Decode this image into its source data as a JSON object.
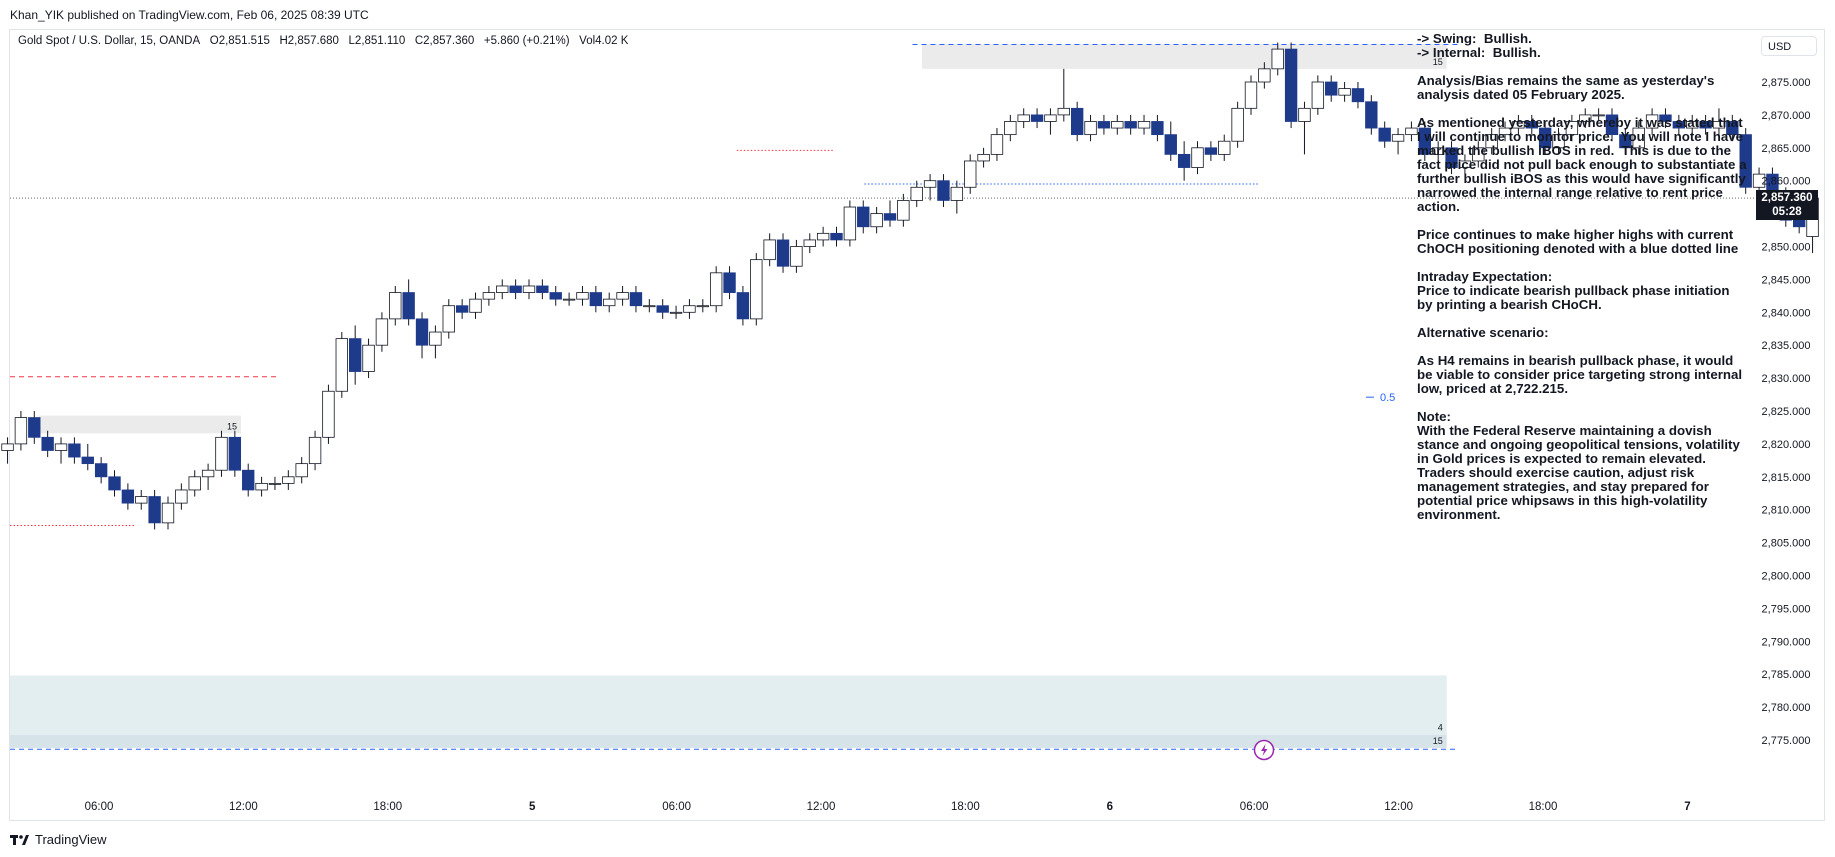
{
  "publisher": "Khan_YIK published on TradingView.com, Feb 06, 2025 08:39 UTC",
  "footer_brand": "TradingView",
  "footer_logo_icon": "tradingview-logo-icon",
  "legend": {
    "symbol": "Gold Spot / U.S. Dollar, 15, OANDA",
    "open": "O2,851.515",
    "high": "H2,857.680",
    "low": "L2,851.110",
    "close": "C2,857.360",
    "change": "+5.860 (+0.21%)",
    "volume": "Vol4.02 K"
  },
  "currency_button": "USD",
  "current_price": "2,857.360",
  "countdown": "05:28",
  "fib_label": "0.5",
  "zone_labels": {
    "top": "15",
    "left": "15",
    "lower_a": "4",
    "lower_b": "15"
  },
  "alert_icon": "lightning-icon",
  "colors": {
    "bear": "#1e3a8a",
    "bull_body": "#ffffff",
    "wick": "#131722",
    "dash_blue": "#2962ff",
    "dash_red": "#f23645",
    "zone_grey": "#e8e8e8",
    "zone_cyan": "#e3eff0"
  },
  "notes": [
    "-> Swing:  Bullish.\n-> Internal:  Bullish.",
    "Analysis/Bias remains the same as yesterday's analysis dated 05 February 2025.",
    "As mentioned yesterday, whereby it was stated that I will continue to monitor price.  You will note I have marked the bullish iBOS in red.  This is due to the fact price did not pull back enough to substantiate a further bullish iBOS as this would have significantly narrowed the internal range relative to rent price action.",
    "Price continues to make higher highs with current ChOCH positioning denoted with a blue dotted line",
    "Intraday Expectation:\nPrice to indicate bearish pullback phase initiation by printing a bearish CHoCH.",
    "Alternative scenario:",
    "As H4 remains in bearish pullback phase, it would be viable to consider price targeting strong internal low, priced at 2,722.215.",
    "Note:\nWith the Federal Reserve maintaining a dovish stance and ongoing geopolitical tensions, volatility in Gold prices is expected to remain elevated. Traders should exercise caution, adjust risk management strategies, and stay prepared for potential price whipsaws in this high-volatility environment."
  ],
  "chart_data": {
    "type": "candlestick",
    "ylim": [
      2770,
      2882
    ],
    "y_ticks": [
      "2,875.000",
      "2,870.000",
      "2,865.000",
      "2,860.000",
      "2,855.000",
      "2,850.000",
      "2,845.000",
      "2,840.000",
      "2,835.000",
      "2,830.000",
      "2,825.000",
      "2,820.000",
      "2,815.000",
      "2,810.000",
      "2,805.000",
      "2,800.000",
      "2,795.000",
      "2,790.000",
      "2,785.000",
      "2,780.000",
      "2,775.000"
    ],
    "y_tick_values": [
      2875,
      2870,
      2865,
      2860,
      2855,
      2850,
      2845,
      2840,
      2835,
      2830,
      2825,
      2820,
      2815,
      2810,
      2805,
      2800,
      2795,
      2790,
      2785,
      2780,
      2775
    ],
    "x_ticks": [
      "06:00",
      "12:00",
      "18:00",
      "5",
      "06:00",
      "12:00",
      "18:00",
      "6",
      "06:00",
      "12:00",
      "18:00",
      "7"
    ],
    "x_tick_hours": [
      6,
      12,
      18,
      24,
      30,
      36,
      42,
      48,
      54,
      60,
      66,
      72
    ],
    "x_range_hours": [
      2.2,
      77.7
    ],
    "candles": [
      {
        "o": 2819,
        "h": 2821,
        "l": 2817,
        "c": 2820
      },
      {
        "o": 2820,
        "h": 2825,
        "l": 2819,
        "c": 2824
      },
      {
        "o": 2824,
        "h": 2825,
        "l": 2820,
        "c": 2821
      },
      {
        "o": 2821,
        "h": 2822,
        "l": 2818,
        "c": 2819
      },
      {
        "o": 2819,
        "h": 2821,
        "l": 2817,
        "c": 2820
      },
      {
        "o": 2820,
        "h": 2821,
        "l": 2817,
        "c": 2818
      },
      {
        "o": 2818,
        "h": 2820,
        "l": 2816,
        "c": 2817
      },
      {
        "o": 2817,
        "h": 2818,
        "l": 2814,
        "c": 2815
      },
      {
        "o": 2815,
        "h": 2816,
        "l": 2812,
        "c": 2813
      },
      {
        "o": 2813,
        "h": 2814,
        "l": 2810,
        "c": 2811
      },
      {
        "o": 2811,
        "h": 2813,
        "l": 2810,
        "c": 2812
      },
      {
        "o": 2812,
        "h": 2813,
        "l": 2807,
        "c": 2808
      },
      {
        "o": 2808,
        "h": 2812,
        "l": 2807,
        "c": 2811
      },
      {
        "o": 2811,
        "h": 2814,
        "l": 2810,
        "c": 2813
      },
      {
        "o": 2813,
        "h": 2816,
        "l": 2812,
        "c": 2815
      },
      {
        "o": 2815,
        "h": 2817,
        "l": 2813,
        "c": 2816
      },
      {
        "o": 2816,
        "h": 2822,
        "l": 2815,
        "c": 2821
      },
      {
        "o": 2821,
        "h": 2822,
        "l": 2815,
        "c": 2816
      },
      {
        "o": 2816,
        "h": 2817,
        "l": 2812,
        "c": 2813
      },
      {
        "o": 2813,
        "h": 2815,
        "l": 2812,
        "c": 2814
      },
      {
        "o": 2814,
        "h": 2815,
        "l": 2813,
        "c": 2814
      },
      {
        "o": 2814,
        "h": 2816,
        "l": 2813,
        "c": 2815
      },
      {
        "o": 2815,
        "h": 2818,
        "l": 2814,
        "c": 2817
      },
      {
        "o": 2817,
        "h": 2822,
        "l": 2816,
        "c": 2821
      },
      {
        "o": 2821,
        "h": 2829,
        "l": 2820,
        "c": 2828
      },
      {
        "o": 2828,
        "h": 2837,
        "l": 2827,
        "c": 2836
      },
      {
        "o": 2836,
        "h": 2838,
        "l": 2829,
        "c": 2831
      },
      {
        "o": 2831,
        "h": 2836,
        "l": 2830,
        "c": 2835
      },
      {
        "o": 2835,
        "h": 2840,
        "l": 2834,
        "c": 2839
      },
      {
        "o": 2839,
        "h": 2844,
        "l": 2838,
        "c": 2843
      },
      {
        "o": 2843,
        "h": 2845,
        "l": 2838,
        "c": 2839
      },
      {
        "o": 2839,
        "h": 2840,
        "l": 2833,
        "c": 2835
      },
      {
        "o": 2835,
        "h": 2838,
        "l": 2833,
        "c": 2837
      },
      {
        "o": 2837,
        "h": 2842,
        "l": 2836,
        "c": 2841
      },
      {
        "o": 2841,
        "h": 2842,
        "l": 2839,
        "c": 2840
      },
      {
        "o": 2840,
        "h": 2843,
        "l": 2839,
        "c": 2842
      },
      {
        "o": 2842,
        "h": 2844,
        "l": 2841,
        "c": 2843
      },
      {
        "o": 2843,
        "h": 2845,
        "l": 2842,
        "c": 2844
      },
      {
        "o": 2844,
        "h": 2845,
        "l": 2842,
        "c": 2843
      },
      {
        "o": 2843,
        "h": 2845,
        "l": 2842,
        "c": 2844
      },
      {
        "o": 2844,
        "h": 2845,
        "l": 2842,
        "c": 2843
      },
      {
        "o": 2843,
        "h": 2844,
        "l": 2841,
        "c": 2842
      },
      {
        "o": 2842,
        "h": 2843,
        "l": 2841,
        "c": 2842
      },
      {
        "o": 2842,
        "h": 2844,
        "l": 2841,
        "c": 2843
      },
      {
        "o": 2843,
        "h": 2844,
        "l": 2840,
        "c": 2841
      },
      {
        "o": 2841,
        "h": 2843,
        "l": 2840,
        "c": 2842
      },
      {
        "o": 2842,
        "h": 2844,
        "l": 2841,
        "c": 2843
      },
      {
        "o": 2843,
        "h": 2844,
        "l": 2840,
        "c": 2841
      },
      {
        "o": 2841,
        "h": 2842,
        "l": 2840,
        "c": 2841
      },
      {
        "o": 2841,
        "h": 2842,
        "l": 2839,
        "c": 2840
      },
      {
        "o": 2840,
        "h": 2841,
        "l": 2839,
        "c": 2840
      },
      {
        "o": 2840,
        "h": 2842,
        "l": 2839,
        "c": 2841
      },
      {
        "o": 2841,
        "h": 2842,
        "l": 2840,
        "c": 2841
      },
      {
        "o": 2841,
        "h": 2847,
        "l": 2840,
        "c": 2846
      },
      {
        "o": 2846,
        "h": 2847,
        "l": 2842,
        "c": 2843
      },
      {
        "o": 2843,
        "h": 2844,
        "l": 2838,
        "c": 2839
      },
      {
        "o": 2839,
        "h": 2849,
        "l": 2838,
        "c": 2848
      },
      {
        "o": 2848,
        "h": 2852,
        "l": 2847,
        "c": 2851
      },
      {
        "o": 2851,
        "h": 2852,
        "l": 2846,
        "c": 2847
      },
      {
        "o": 2847,
        "h": 2851,
        "l": 2846,
        "c": 2850
      },
      {
        "o": 2850,
        "h": 2852,
        "l": 2849,
        "c": 2851
      },
      {
        "o": 2851,
        "h": 2853,
        "l": 2850,
        "c": 2852
      },
      {
        "o": 2852,
        "h": 2853,
        "l": 2850,
        "c": 2851
      },
      {
        "o": 2851,
        "h": 2857,
        "l": 2850,
        "c": 2856
      },
      {
        "o": 2856,
        "h": 2857,
        "l": 2852,
        "c": 2853
      },
      {
        "o": 2853,
        "h": 2856,
        "l": 2852,
        "c": 2855
      },
      {
        "o": 2855,
        "h": 2857,
        "l": 2853,
        "c": 2854
      },
      {
        "o": 2854,
        "h": 2858,
        "l": 2853,
        "c": 2857
      },
      {
        "o": 2857,
        "h": 2860,
        "l": 2856,
        "c": 2859
      },
      {
        "o": 2859,
        "h": 2861,
        "l": 2857,
        "c": 2860
      },
      {
        "o": 2860,
        "h": 2861,
        "l": 2856,
        "c": 2857
      },
      {
        "o": 2857,
        "h": 2860,
        "l": 2855,
        "c": 2859
      },
      {
        "o": 2859,
        "h": 2864,
        "l": 2858,
        "c": 2863
      },
      {
        "o": 2863,
        "h": 2865,
        "l": 2862,
        "c": 2864
      },
      {
        "o": 2864,
        "h": 2868,
        "l": 2863,
        "c": 2867
      },
      {
        "o": 2867,
        "h": 2870,
        "l": 2866,
        "c": 2869
      },
      {
        "o": 2869,
        "h": 2871,
        "l": 2868,
        "c": 2870
      },
      {
        "o": 2870,
        "h": 2871,
        "l": 2868,
        "c": 2869
      },
      {
        "o": 2869,
        "h": 2871,
        "l": 2867,
        "c": 2870
      },
      {
        "o": 2870,
        "h": 2877,
        "l": 2869,
        "c": 2871
      },
      {
        "o": 2871,
        "h": 2872,
        "l": 2866,
        "c": 2867
      },
      {
        "o": 2867,
        "h": 2870,
        "l": 2866,
        "c": 2869
      },
      {
        "o": 2869,
        "h": 2870,
        "l": 2867,
        "c": 2868
      },
      {
        "o": 2868,
        "h": 2870,
        "l": 2867,
        "c": 2869
      },
      {
        "o": 2869,
        "h": 2870,
        "l": 2867,
        "c": 2868
      },
      {
        "o": 2868,
        "h": 2870,
        "l": 2867,
        "c": 2869
      },
      {
        "o": 2869,
        "h": 2870,
        "l": 2866,
        "c": 2867
      },
      {
        "o": 2867,
        "h": 2869,
        "l": 2863,
        "c": 2864
      },
      {
        "o": 2864,
        "h": 2866,
        "l": 2860,
        "c": 2862
      },
      {
        "o": 2862,
        "h": 2866,
        "l": 2861,
        "c": 2865
      },
      {
        "o": 2865,
        "h": 2866,
        "l": 2863,
        "c": 2864
      },
      {
        "o": 2864,
        "h": 2867,
        "l": 2863,
        "c": 2866
      },
      {
        "o": 2866,
        "h": 2872,
        "l": 2865,
        "c": 2871
      },
      {
        "o": 2871,
        "h": 2876,
        "l": 2870,
        "c": 2875
      },
      {
        "o": 2875,
        "h": 2878,
        "l": 2874,
        "c": 2877
      },
      {
        "o": 2877,
        "h": 2881,
        "l": 2876,
        "c": 2880
      },
      {
        "o": 2880,
        "h": 2881,
        "l": 2868,
        "c": 2869
      },
      {
        "o": 2869,
        "h": 2872,
        "l": 2864,
        "c": 2871
      },
      {
        "o": 2871,
        "h": 2876,
        "l": 2870,
        "c": 2875
      },
      {
        "o": 2875,
        "h": 2876,
        "l": 2872,
        "c": 2873
      },
      {
        "o": 2873,
        "h": 2875,
        "l": 2872,
        "c": 2874
      },
      {
        "o": 2874,
        "h": 2875,
        "l": 2871,
        "c": 2872
      },
      {
        "o": 2872,
        "h": 2873,
        "l": 2867,
        "c": 2868
      },
      {
        "o": 2868,
        "h": 2869,
        "l": 2865,
        "c": 2866
      },
      {
        "o": 2866,
        "h": 2868,
        "l": 2864,
        "c": 2867
      },
      {
        "o": 2867,
        "h": 2869,
        "l": 2866,
        "c": 2868
      },
      {
        "o": 2868,
        "h": 2869,
        "l": 2863,
        "c": 2864
      },
      {
        "o": 2864,
        "h": 2866,
        "l": 2862,
        "c": 2865
      },
      {
        "o": 2865,
        "h": 2866,
        "l": 2861,
        "c": 2862
      },
      {
        "o": 2862,
        "h": 2864,
        "l": 2861,
        "c": 2863
      },
      {
        "o": 2863,
        "h": 2866,
        "l": 2862,
        "c": 2865
      },
      {
        "o": 2865,
        "h": 2868,
        "l": 2864,
        "c": 2867
      },
      {
        "o": 2867,
        "h": 2869,
        "l": 2866,
        "c": 2868
      },
      {
        "o": 2868,
        "h": 2870,
        "l": 2867,
        "c": 2869
      },
      {
        "o": 2869,
        "h": 2870,
        "l": 2867,
        "c": 2868
      },
      {
        "o": 2868,
        "h": 2869,
        "l": 2864,
        "c": 2865
      },
      {
        "o": 2865,
        "h": 2868,
        "l": 2864,
        "c": 2867
      },
      {
        "o": 2867,
        "h": 2870,
        "l": 2866,
        "c": 2869
      },
      {
        "o": 2869,
        "h": 2871,
        "l": 2868,
        "c": 2870
      },
      {
        "o": 2870,
        "h": 2871,
        "l": 2869,
        "c": 2870
      },
      {
        "o": 2870,
        "h": 2871,
        "l": 2866,
        "c": 2867
      },
      {
        "o": 2867,
        "h": 2868,
        "l": 2864,
        "c": 2865
      },
      {
        "o": 2865,
        "h": 2869,
        "l": 2864,
        "c": 2868
      },
      {
        "o": 2868,
        "h": 2871,
        "l": 2867,
        "c": 2870
      },
      {
        "o": 2870,
        "h": 2871,
        "l": 2868,
        "c": 2869
      },
      {
        "o": 2869,
        "h": 2870,
        "l": 2867,
        "c": 2868
      },
      {
        "o": 2868,
        "h": 2870,
        "l": 2867,
        "c": 2869
      },
      {
        "o": 2869,
        "h": 2870,
        "l": 2867,
        "c": 2868
      },
      {
        "o": 2868,
        "h": 2871,
        "l": 2867,
        "c": 2869
      },
      {
        "o": 2869,
        "h": 2870,
        "l": 2866,
        "c": 2867
      },
      {
        "o": 2867,
        "h": 2868,
        "l": 2858,
        "c": 2859
      },
      {
        "o": 2859,
        "h": 2862,
        "l": 2858,
        "c": 2861
      },
      {
        "o": 2861,
        "h": 2862,
        "l": 2857,
        "c": 2858
      },
      {
        "o": 2858,
        "h": 2859,
        "l": 2853,
        "c": 2854
      },
      {
        "o": 2854,
        "h": 2855,
        "l": 2852,
        "c": 2853
      },
      {
        "o": 2851.515,
        "h": 2857.68,
        "l": 2849,
        "c": 2857.36
      }
    ],
    "levels": [
      {
        "kind": "choch",
        "price": 2880.7,
        "from_h": 39.8,
        "to_h": 62.5,
        "color": "blue",
        "style": "dashed"
      },
      {
        "kind": "choch",
        "price": 2859.5,
        "from_h": 37.8,
        "to_h": 54.2,
        "color": "blue",
        "style": "dotted"
      },
      {
        "kind": "ibos",
        "price": 2864.6,
        "from_h": 32.5,
        "to_h": 36.5,
        "color": "red",
        "style": "dotted"
      },
      {
        "kind": "ibos",
        "price": 2830.2,
        "from_h": 2.2,
        "to_h": 13.5,
        "color": "red",
        "style": "dashed"
      },
      {
        "kind": "low",
        "price": 2807.6,
        "from_h": 2.2,
        "to_h": 7.5,
        "color": "red",
        "style": "dotted"
      },
      {
        "kind": "strong_low",
        "price": 2773.6,
        "from_h": 2.2,
        "to_h": 62.5,
        "color": "blue",
        "style": "dashed"
      }
    ],
    "zones": [
      {
        "top": 2880.8,
        "bottom": 2877,
        "from_h": 40.2,
        "to_h": 62.0,
        "label": "zone_labels.top",
        "color": "grey"
      },
      {
        "top": 2824.3,
        "bottom": 2821.6,
        "from_h": 3.5,
        "to_h": 11.9,
        "label": "zone_labels.left",
        "color": "grey"
      },
      {
        "top": 2784.8,
        "bottom": 2775.8,
        "from_h": 2.2,
        "to_h": 62.0,
        "label": "zone_labels.lower_a",
        "color": "cyan"
      },
      {
        "top": 2775.8,
        "bottom": 2773.8,
        "from_h": 2.2,
        "to_h": 62.0,
        "label": "zone_labels.lower_b",
        "color": "cyan_dark"
      }
    ],
    "fib_level": 0.5,
    "fib_price": 2827.1
  }
}
